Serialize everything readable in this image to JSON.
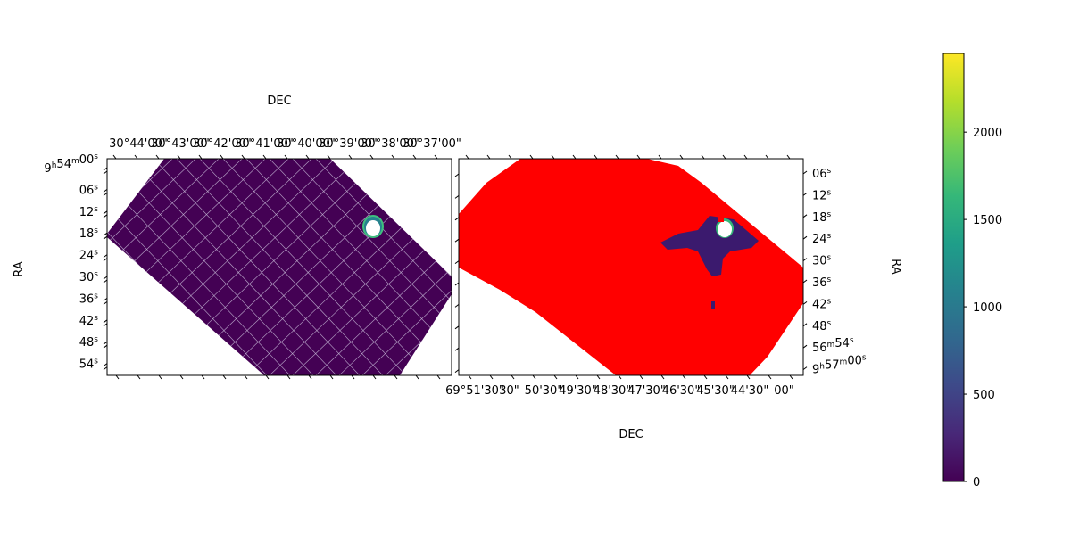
{
  "chart_data": [
    {
      "type": "heatmap",
      "panel": "left",
      "xlabel": "DEC",
      "ylabel": "RA",
      "x_axis_position": "top",
      "y_axis_position": "left",
      "grid": true,
      "x_ticks": [
        "30°44'00\"",
        "30°43'00\"",
        "30°42'00\"",
        "30°41'00\"",
        "30°40'00\"",
        "30°39'00\"",
        "30°38'00\"",
        "30°37'00\""
      ],
      "y_ticks": [
        {
          "main": "9",
          "sup1": "h",
          "mid": "54",
          "sup2": "m",
          "tail": "00",
          "sup3": "s"
        },
        {
          "main": "06",
          "sup": "s"
        },
        {
          "main": "12",
          "sup": "s"
        },
        {
          "main": "18",
          "sup": "s"
        },
        {
          "main": "24",
          "sup": "s"
        },
        {
          "main": "30",
          "sup": "s"
        },
        {
          "main": "36",
          "sup": "s"
        },
        {
          "main": "42",
          "sup": "s"
        },
        {
          "main": "48",
          "sup": "s"
        },
        {
          "main": "54",
          "sup": "s"
        }
      ],
      "colors": {
        "field": "#440154",
        "grid": "#c8bcd8",
        "source_ring": "#3fbf7f",
        "source_core": "#ffffff"
      }
    },
    {
      "type": "heatmap",
      "panel": "right",
      "xlabel": "DEC",
      "ylabel": "RA",
      "x_axis_position": "bottom",
      "y_axis_position": "right",
      "grid": false,
      "x_ticks": [
        "69°51'30\"",
        "30\"",
        "50'30\"",
        "49'30\"",
        "48'30\"",
        "47'30\"",
        "46'30\"",
        "45'30\"",
        "44'30\"",
        "00\""
      ],
      "y_ticks": [
        {
          "main": "06",
          "sup": "s"
        },
        {
          "main": "12",
          "sup": "s"
        },
        {
          "main": "18",
          "sup": "s"
        },
        {
          "main": "24",
          "sup": "s"
        },
        {
          "main": "30",
          "sup": "s"
        },
        {
          "main": "36",
          "sup": "s"
        },
        {
          "main": "42",
          "sup": "s"
        },
        {
          "main": "48",
          "sup": "s"
        },
        {
          "main": "56",
          "sup1": "m",
          "mid": "54",
          "sup2": "s"
        },
        {
          "main": "9",
          "sup1": "h",
          "mid": "57",
          "sup2": "m",
          "tail": "00",
          "sup3": "s"
        }
      ],
      "colors": {
        "masked": "#ff0000",
        "field": "#3b1a6e",
        "source_core": "#ffffff"
      }
    }
  ],
  "colorbar": {
    "ticks": [
      0,
      500,
      1000,
      1500,
      2000
    ],
    "range": [
      0,
      2450
    ],
    "colormap": [
      "#440154",
      "#482878",
      "#3e4989",
      "#31688e",
      "#26828e",
      "#1f9e89",
      "#35b779",
      "#6ece58",
      "#b5de2b",
      "#fde725"
    ]
  }
}
